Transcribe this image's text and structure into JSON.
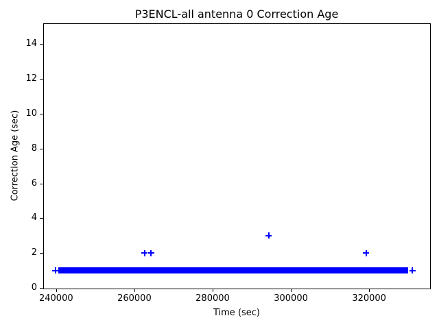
{
  "chart_data": {
    "type": "scatter",
    "title": "P3ENCL-all antenna 0 Correction Age",
    "xlabel": "Time (sec)",
    "ylabel": "Correction Age (sec)",
    "marker": "+",
    "marker_color": "#0000FF",
    "grid": false,
    "legend": null,
    "xlim": [
      236700,
      335400
    ],
    "ylim": [
      0,
      15.2
    ],
    "xticks": {
      "values": [
        240000,
        260000,
        280000,
        300000,
        320000
      ],
      "labels": [
        "240000",
        "260000",
        "280000",
        "300000",
        "320000"
      ]
    },
    "yticks": {
      "values": [
        0,
        2,
        4,
        6,
        8,
        10,
        12,
        14
      ],
      "labels": [
        "0",
        "2",
        "4",
        "6",
        "8",
        "10",
        "12",
        "14"
      ]
    },
    "band": {
      "note": "dense run of overlapping + markers forming a solid bar",
      "y": 1,
      "x_start": 240600,
      "x_end": 330000
    },
    "points": [
      {
        "x": 239800,
        "y": 1
      },
      {
        "x": 262600,
        "y": 2
      },
      {
        "x": 264300,
        "y": 2
      },
      {
        "x": 294300,
        "y": 3
      },
      {
        "x": 319200,
        "y": 2
      },
      {
        "x": 331100,
        "y": 1
      }
    ]
  }
}
